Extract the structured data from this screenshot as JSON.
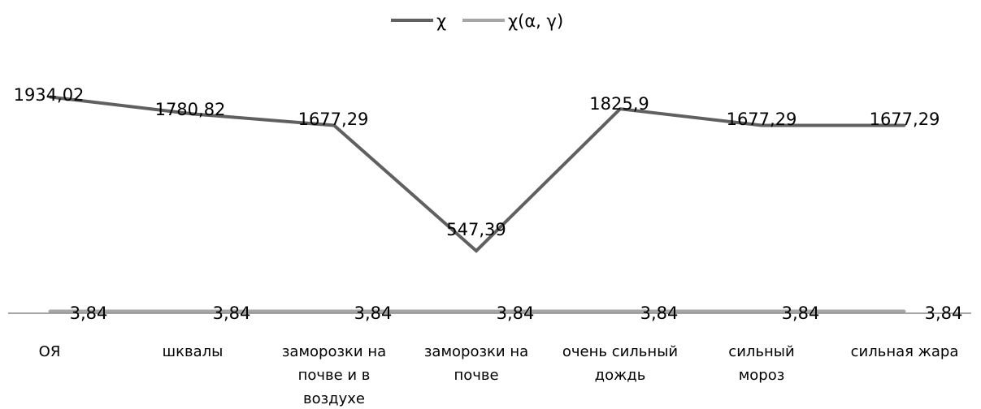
{
  "chart_data": {
    "type": "line",
    "categories": [
      [
        "ОЯ"
      ],
      [
        "шквалы"
      ],
      [
        "заморозки на",
        "почве и в",
        "воздухе"
      ],
      [
        "заморозки на",
        "почве"
      ],
      [
        "очень сильный",
        "дождь"
      ],
      [
        "сильный",
        "мороз"
      ],
      [
        "сильная жара"
      ]
    ],
    "series": [
      {
        "name": "χ",
        "values": [
          1934.02,
          1780.82,
          1677.29,
          547.39,
          1825.9,
          1677.29,
          1677.29
        ],
        "labels": [
          "1934,02",
          "1780,82",
          "1677,29",
          "547,39",
          "1825,9",
          "1677,29",
          "1677,29"
        ],
        "color": "#606060"
      },
      {
        "name": "χ(α, γ)",
        "values": [
          3.84,
          3.84,
          3.84,
          3.84,
          3.84,
          3.84,
          3.84
        ],
        "labels": [
          "3,84",
          "3,84",
          "3,84",
          "3,84",
          "3,84",
          "3,84",
          "3,84"
        ],
        "color": "#a6a6a6"
      }
    ],
    "ylim": [
      0,
      2400
    ],
    "grid": false,
    "legend": "top-center",
    "title": "",
    "xlabel": "",
    "ylabel": ""
  }
}
